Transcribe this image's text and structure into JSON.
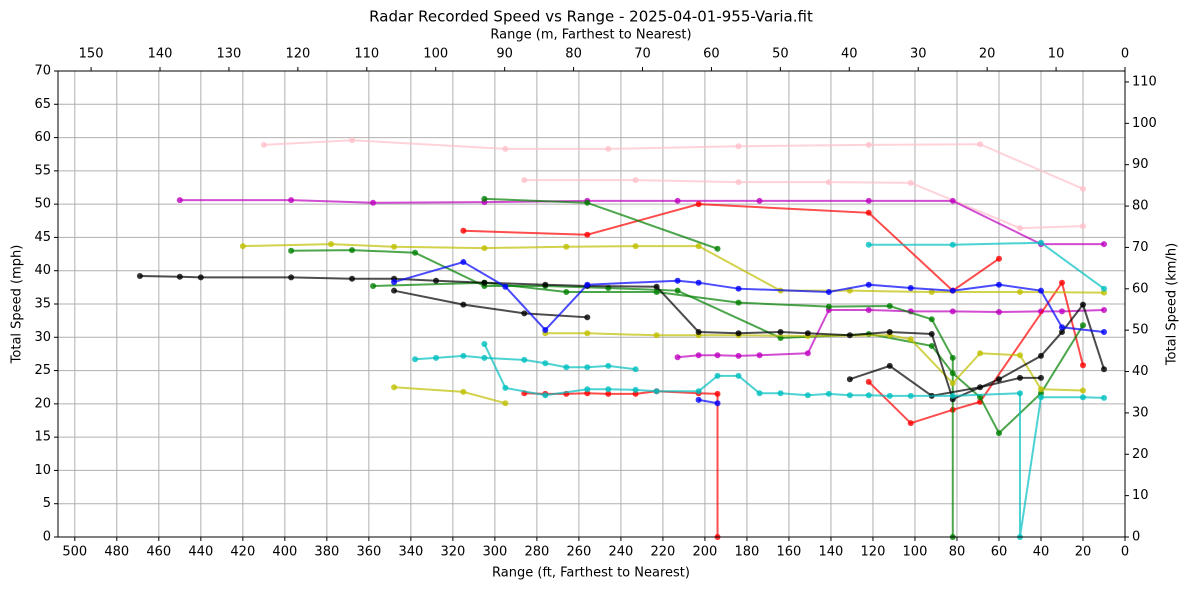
{
  "chart_data": {
    "type": "line",
    "title": "Radar Recorded Speed vs Range - 2025-04-01-955-Varia.fit",
    "xlabel": "Range (ft, Farthest to Nearest)",
    "ylabel": "Total Speed (mph)",
    "x2label": "Range (m, Farthest to Nearest)",
    "y2label": "Total Speed (km/h)",
    "xlim": [
      508,
      0
    ],
    "xticks": [
      500,
      480,
      460,
      440,
      420,
      400,
      380,
      360,
      340,
      320,
      300,
      280,
      260,
      240,
      220,
      200,
      180,
      160,
      140,
      120,
      100,
      80,
      60,
      40,
      20,
      0
    ],
    "ylim": [
      0,
      70
    ],
    "yticks": [
      0,
      5,
      10,
      15,
      20,
      25,
      30,
      35,
      40,
      45,
      50,
      55,
      60,
      65,
      70
    ],
    "x2lim": [
      154.8,
      0
    ],
    "x2ticks": [
      150,
      140,
      130,
      120,
      110,
      100,
      90,
      80,
      70,
      60,
      50,
      40,
      30,
      20,
      10,
      0
    ],
    "y2lim": [
      0,
      112.65
    ],
    "y2ticks": [
      0,
      10,
      20,
      30,
      40,
      50,
      60,
      70,
      80,
      90,
      100,
      110
    ],
    "grid": true,
    "series": [
      {
        "color": "#ffc0cb",
        "x": [
          410,
          368,
          295,
          246,
          184,
          122,
          69,
          20
        ],
        "values": [
          58.9,
          59.6,
          58.3,
          58.3,
          58.7,
          58.9,
          59.0,
          52.3
        ]
      },
      {
        "color": "#ffc0cb",
        "x": [
          286,
          233,
          184,
          141,
          102,
          50,
          20
        ],
        "values": [
          53.6,
          53.6,
          53.3,
          53.3,
          53.2,
          46.4,
          46.7
        ]
      },
      {
        "color": "#bf00bf",
        "x": [
          450,
          397,
          358,
          305,
          256,
          213,
          174,
          122,
          82,
          40,
          10
        ],
        "values": [
          50.6,
          50.6,
          50.2,
          50.3,
          50.5,
          50.5,
          50.5,
          50.5,
          50.5,
          44.0,
          44.0
        ]
      },
      {
        "color": "#bf00bf",
        "x": [
          213,
          203,
          194,
          184,
          174,
          151,
          141,
          122,
          102,
          82,
          60,
          40,
          30,
          10
        ],
        "values": [
          27.0,
          27.3,
          27.3,
          27.2,
          27.3,
          27.6,
          34.1,
          34.1,
          33.9,
          33.9,
          33.8,
          33.9,
          33.9,
          34.1
        ]
      },
      {
        "color": "#ff0000",
        "x": [
          315,
          256,
          203,
          122,
          82,
          60
        ],
        "values": [
          46.0,
          45.4,
          50.0,
          48.7,
          37.0,
          41.8
        ]
      },
      {
        "color": "#ff0000",
        "x": [
          122,
          102,
          82,
          69,
          30,
          20
        ],
        "values": [
          23.3,
          17.1,
          19.1,
          20.3,
          38.2,
          25.8
        ]
      },
      {
        "color": "#ff0000",
        "x": [
          286,
          276,
          266,
          256,
          246,
          233,
          223,
          203,
          194,
          194
        ],
        "values": [
          21.6,
          21.5,
          21.5,
          21.6,
          21.5,
          21.5,
          21.9,
          21.6,
          21.5,
          0
        ]
      },
      {
        "color": "#008000",
        "x": [
          305,
          256,
          194
        ],
        "values": [
          50.8,
          50.2,
          43.3
        ]
      },
      {
        "color": "#008000",
        "x": [
          397,
          368,
          338,
          305,
          276,
          246,
          213,
          164,
          122,
          92,
          82,
          69,
          60,
          40,
          20
        ],
        "values": [
          43.0,
          43.1,
          42.7,
          37.7,
          37.7,
          37.4,
          37.0,
          29.9,
          30.5,
          28.7,
          24.6,
          21.0,
          15.6,
          21.6,
          31.8
        ]
      },
      {
        "color": "#008000",
        "x": [
          358,
          305,
          266,
          223,
          184,
          141,
          112,
          92,
          82,
          82
        ],
        "values": [
          37.7,
          38.2,
          36.8,
          36.8,
          35.2,
          34.6,
          34.7,
          32.7,
          26.9,
          0
        ]
      },
      {
        "color": "#bfbf00",
        "x": [
          420,
          378,
          348,
          305,
          266,
          233,
          203,
          164,
          131,
          92,
          50,
          10
        ],
        "values": [
          43.7,
          44.0,
          43.6,
          43.4,
          43.6,
          43.7,
          43.7,
          37.0,
          37.0,
          36.8,
          36.8,
          36.7
        ]
      },
      {
        "color": "#bfbf00",
        "x": [
          276,
          256,
          223,
          203,
          184,
          151,
          112,
          102,
          82,
          69,
          50,
          40,
          20
        ],
        "values": [
          30.6,
          30.6,
          30.3,
          30.3,
          30.3,
          30.2,
          30.3,
          29.7,
          23.1,
          27.6,
          27.3,
          22.2,
          22.0
        ]
      },
      {
        "color": "#bfbf00",
        "x": [
          348,
          315,
          295
        ],
        "values": [
          22.5,
          21.8,
          20.1
        ]
      },
      {
        "color": "#000000",
        "x": [
          469,
          450,
          440,
          397,
          368,
          348,
          328,
          305,
          276,
          256,
          223,
          203,
          184,
          164,
          151,
          131,
          112,
          92,
          82,
          60,
          40,
          30,
          20,
          10
        ],
        "values": [
          39.2,
          39.1,
          39.0,
          39.0,
          38.8,
          38.8,
          38.5,
          38.2,
          37.9,
          37.7,
          37.6,
          30.8,
          30.6,
          30.8,
          30.6,
          30.3,
          30.8,
          30.5,
          20.7,
          23.7,
          27.2,
          30.8,
          34.9,
          25.2
        ]
      },
      {
        "color": "#000000",
        "x": [
          348,
          315,
          286,
          256
        ],
        "values": [
          37.0,
          34.9,
          33.6,
          33.0
        ]
      },
      {
        "color": "#000000",
        "x": [
          131,
          112,
          92,
          69,
          50,
          40
        ],
        "values": [
          23.7,
          25.7,
          21.2,
          22.5,
          23.9,
          23.9
        ]
      },
      {
        "color": "#0000ff",
        "x": [
          348,
          315,
          295,
          276,
          256,
          213,
          203,
          184,
          141,
          122,
          102,
          82,
          60,
          40,
          30,
          10
        ],
        "values": [
          38.3,
          41.3,
          37.6,
          31.1,
          37.9,
          38.5,
          38.2,
          37.3,
          36.8,
          37.9,
          37.4,
          37.0,
          37.9,
          37.0,
          31.5,
          30.8
        ]
      },
      {
        "color": "#0000ff",
        "x": [
          203,
          194
        ],
        "values": [
          20.6,
          20.1
        ]
      },
      {
        "color": "#00bfbf",
        "x": [
          122,
          82,
          40,
          10
        ],
        "values": [
          43.9,
          43.9,
          44.2,
          37.3
        ]
      },
      {
        "color": "#00bfbf",
        "x": [
          338,
          328,
          315,
          305,
          286,
          276,
          266,
          256,
          246,
          233
        ],
        "values": [
          26.7,
          26.9,
          27.2,
          26.9,
          26.6,
          26.1,
          25.5,
          25.5,
          25.7,
          25.2
        ]
      },
      {
        "color": "#00bfbf",
        "x": [
          305,
          295,
          276,
          256,
          246,
          233,
          223,
          203,
          194,
          184,
          174,
          164,
          151,
          141,
          131,
          122,
          112,
          102,
          82,
          50,
          50,
          40,
          20,
          10
        ],
        "values": [
          29.0,
          22.4,
          21.3,
          22.2,
          22.2,
          22.1,
          21.9,
          21.9,
          24.2,
          24.2,
          21.6,
          21.6,
          21.3,
          21.5,
          21.3,
          21.3,
          21.2,
          21.2,
          21.2,
          21.6,
          0,
          21.0,
          21.0,
          20.9
        ]
      }
    ]
  }
}
